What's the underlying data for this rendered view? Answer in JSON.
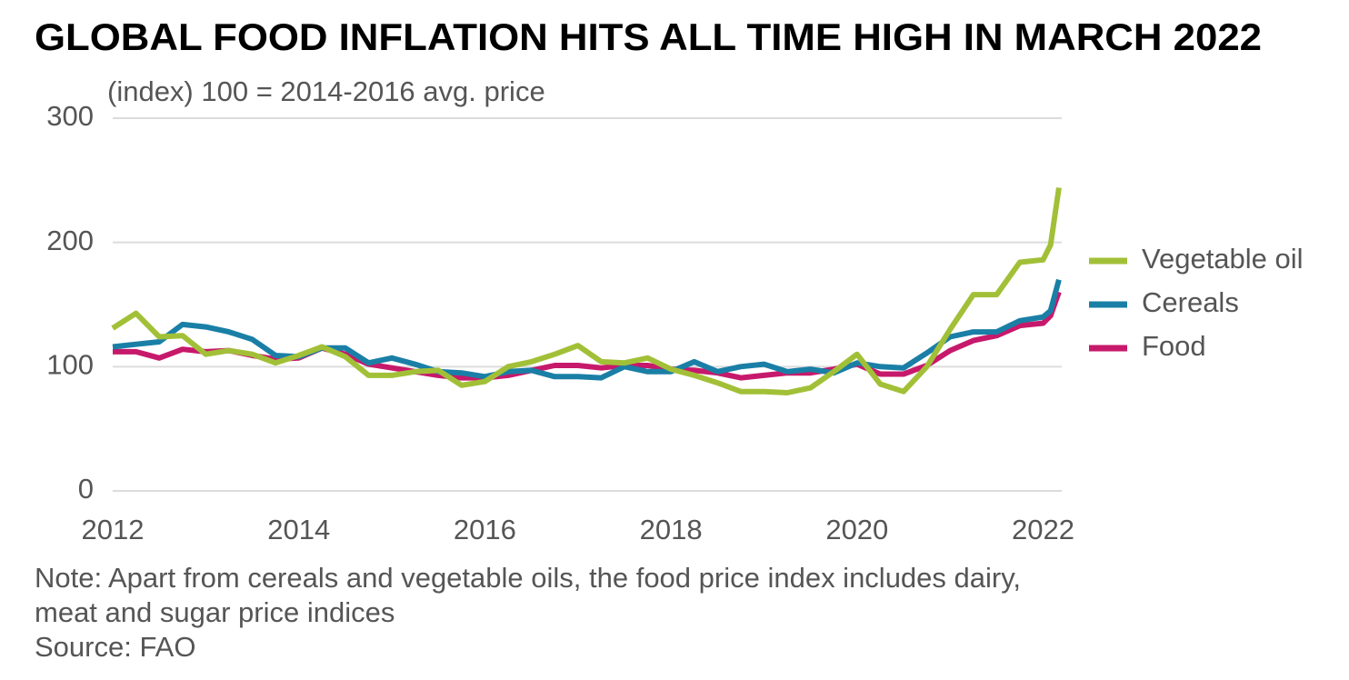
{
  "chart_data": {
    "type": "line",
    "title": "GLOBAL FOOD INFLATION HITS ALL TIME HIGH IN MARCH 2022",
    "y_label": "(index) 100 = 2014-2016 avg. price",
    "notes": [
      "Note: Apart from cereals and vegetable oils, the food price index includes dairy,",
      "meat and sugar price indices"
    ],
    "source": "Source: FAO",
    "x": [
      2012,
      2012.25,
      2012.5,
      2012.75,
      2013,
      2013.25,
      2013.5,
      2013.75,
      2014,
      2014.25,
      2014.5,
      2014.75,
      2015,
      2015.25,
      2015.5,
      2015.75,
      2016,
      2016.25,
      2016.5,
      2016.75,
      2017,
      2017.25,
      2017.5,
      2017.75,
      2018,
      2018.25,
      2018.5,
      2018.75,
      2019,
      2019.25,
      2019.5,
      2019.75,
      2020,
      2020.25,
      2020.5,
      2020.75,
      2021,
      2021.25,
      2021.5,
      2021.75,
      2022,
      2022.08,
      2022.17
    ],
    "series": [
      {
        "name": "Vegetable oil",
        "color": "#a2c037",
        "values": [
          131,
          143,
          124,
          125,
          110,
          113,
          110,
          103,
          109,
          116,
          108,
          93,
          93,
          96,
          97,
          85,
          88,
          100,
          104,
          110,
          117,
          104,
          103,
          107,
          98,
          93,
          87,
          80,
          80,
          79,
          83,
          96,
          110,
          86,
          80,
          100,
          130,
          158,
          158,
          184,
          186,
          198,
          244
        ]
      },
      {
        "name": "Cereals",
        "color": "#1a7fa6",
        "values": [
          116,
          118,
          120,
          134,
          132,
          128,
          122,
          109,
          108,
          115,
          115,
          103,
          107,
          102,
          96,
          95,
          92,
          96,
          97,
          92,
          92,
          91,
          100,
          96,
          96,
          104,
          96,
          100,
          102,
          96,
          98,
          95,
          103,
          100,
          99,
          111,
          124,
          128,
          128,
          137,
          140,
          145,
          170
        ]
      },
      {
        "name": "Food",
        "color": "#c7196b",
        "values": [
          112,
          112,
          107,
          114,
          112,
          113,
          109,
          106,
          107,
          115,
          110,
          102,
          99,
          96,
          93,
          91,
          91,
          93,
          97,
          101,
          101,
          99,
          101,
          101,
          98,
          97,
          95,
          91,
          93,
          95,
          95,
          98,
          102,
          94,
          94,
          101,
          113,
          121,
          125,
          133,
          135,
          141,
          160
        ]
      }
    ],
    "xlim": [
      2012,
      2022.2
    ],
    "xticks": [
      2012,
      2014,
      2016,
      2018,
      2020,
      2022
    ],
    "ylim": [
      0,
      300
    ],
    "yticks": [
      0,
      100,
      200,
      300
    ],
    "grid": true
  }
}
